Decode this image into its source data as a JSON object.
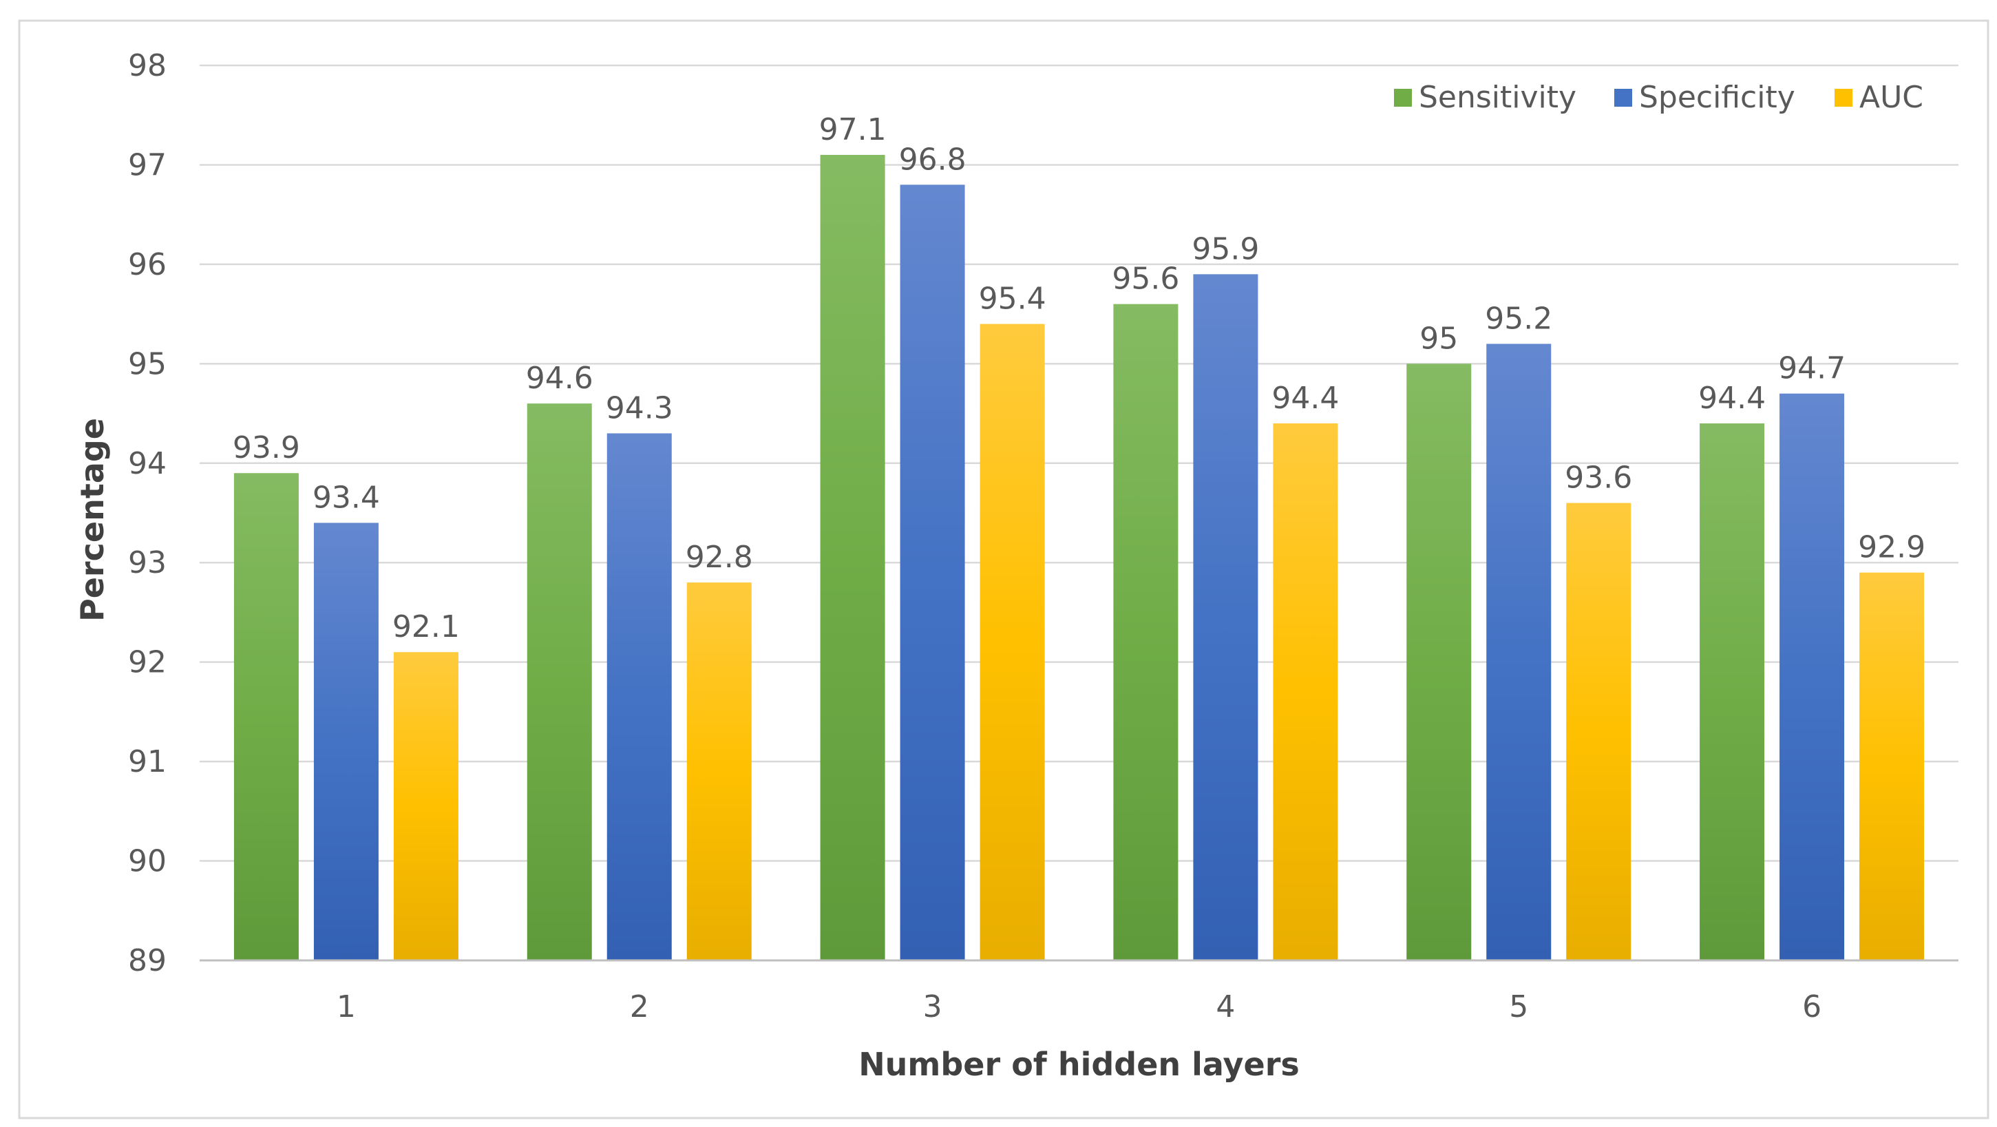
{
  "chart_data": {
    "type": "bar",
    "title": "",
    "xlabel": "Number of hidden layers",
    "ylabel": "Percentage",
    "ylim": [
      89,
      98
    ],
    "yticks": [
      "89",
      "90",
      "91",
      "92",
      "93",
      "94",
      "95",
      "96",
      "97",
      "98"
    ],
    "grid": true,
    "legend_position": "top-right",
    "categories": [
      "1",
      "2",
      "3",
      "4",
      "5",
      "6"
    ],
    "series": [
      {
        "name": "Sensitivity",
        "color": "#70ad47",
        "values": [
          93.9,
          94.6,
          97.1,
          95.6,
          95,
          94.4
        ],
        "labels": [
          "93.9",
          "94.6",
          "97.1",
          "95.6",
          "95",
          "94.4"
        ]
      },
      {
        "name": "Specificity",
        "color": "#4472c4",
        "values": [
          93.4,
          94.3,
          96.8,
          95.9,
          95.2,
          94.7
        ],
        "labels": [
          "93.4",
          "94.3",
          "96.8",
          "95.9",
          "95.2",
          "94.7"
        ]
      },
      {
        "name": "AUC",
        "color": "#ffc000",
        "values": [
          92.1,
          92.8,
          95.4,
          94.4,
          93.6,
          92.9
        ],
        "labels": [
          "92.1",
          "92.8",
          "95.4",
          "94.4",
          "93.6",
          "92.9"
        ]
      }
    ]
  }
}
